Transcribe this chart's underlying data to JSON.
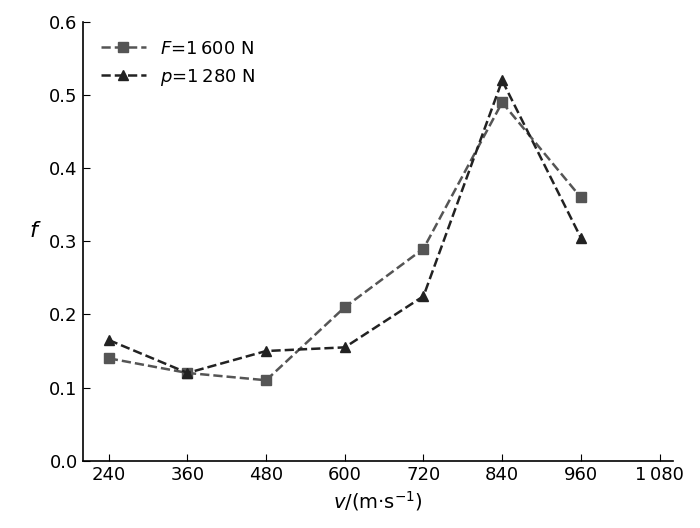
{
  "x": [
    240,
    360,
    480,
    600,
    720,
    840,
    960
  ],
  "series1": {
    "label": "$F$=1 600 N",
    "y": [
      0.14,
      0.12,
      0.11,
      0.21,
      0.29,
      0.49,
      0.36
    ],
    "color": "#555555",
    "marker": "s",
    "markersize": 7,
    "linewidth": 1.8
  },
  "series2": {
    "label": "$p$=1 280 N",
    "y": [
      0.165,
      0.12,
      0.15,
      0.155,
      0.225,
      0.52,
      0.305
    ],
    "color": "#222222",
    "marker": "^",
    "markersize": 7,
    "linewidth": 1.8
  },
  "xlabel": "$v$/(m·s$^{-1}$)",
  "ylabel": "$f$",
  "ylim": [
    0,
    0.6
  ],
  "yticks": [
    0,
    0.1,
    0.2,
    0.3,
    0.4,
    0.5,
    0.6
  ],
  "xticks": [
    240,
    360,
    480,
    600,
    720,
    840,
    960,
    1080
  ],
  "xlim": [
    200,
    1100
  ],
  "figsize": [
    7.0,
    5.28
  ],
  "dpi": 100
}
